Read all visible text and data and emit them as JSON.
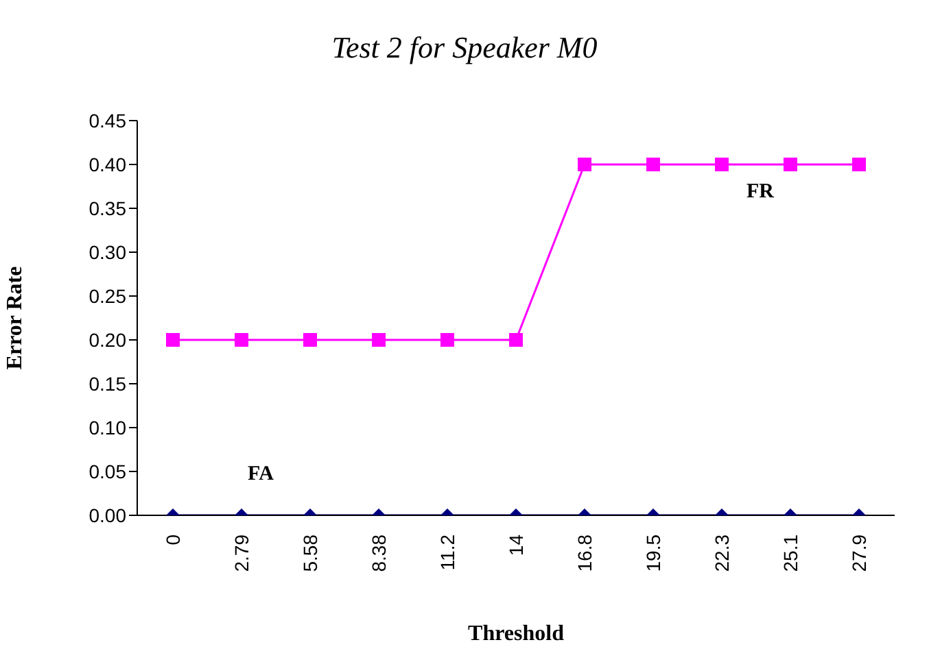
{
  "chart_data": {
    "type": "line",
    "title": "Test 2 for Speaker M0",
    "xlabel": "Threshold",
    "ylabel": "Error Rate",
    "categories": [
      "0",
      "2.79",
      "5.58",
      "8.38",
      "11.2",
      "14",
      "16.8",
      "19.5",
      "22.3",
      "25.1",
      "27.9"
    ],
    "series": [
      {
        "name": "FR",
        "color": "#ff00ff",
        "marker": "square",
        "values": [
          0.2,
          0.2,
          0.2,
          0.2,
          0.2,
          0.2,
          0.4,
          0.4,
          0.4,
          0.4,
          0.4
        ]
      },
      {
        "name": "FA",
        "color": "#000080",
        "marker": "diamond",
        "values": [
          0,
          0,
          0,
          0,
          0,
          0,
          0,
          0,
          0,
          0,
          0
        ]
      }
    ],
    "ylim": [
      0,
      0.45
    ],
    "yticks": [
      {
        "value": 0,
        "label": "0.00"
      },
      {
        "value": 0.05,
        "label": "0.05"
      },
      {
        "value": 0.1,
        "label": "0.10"
      },
      {
        "value": 0.15,
        "label": "0.15"
      },
      {
        "value": 0.2,
        "label": "0.20"
      },
      {
        "value": 0.25,
        "label": "0.25"
      },
      {
        "value": 0.3,
        "label": "0.30"
      },
      {
        "value": 0.35,
        "label": "0.35"
      },
      {
        "value": 0.4,
        "label": "0.40"
      },
      {
        "value": 0.45,
        "label": "0.45"
      }
    ],
    "grid": false,
    "legend": false,
    "line_style": "solid"
  }
}
